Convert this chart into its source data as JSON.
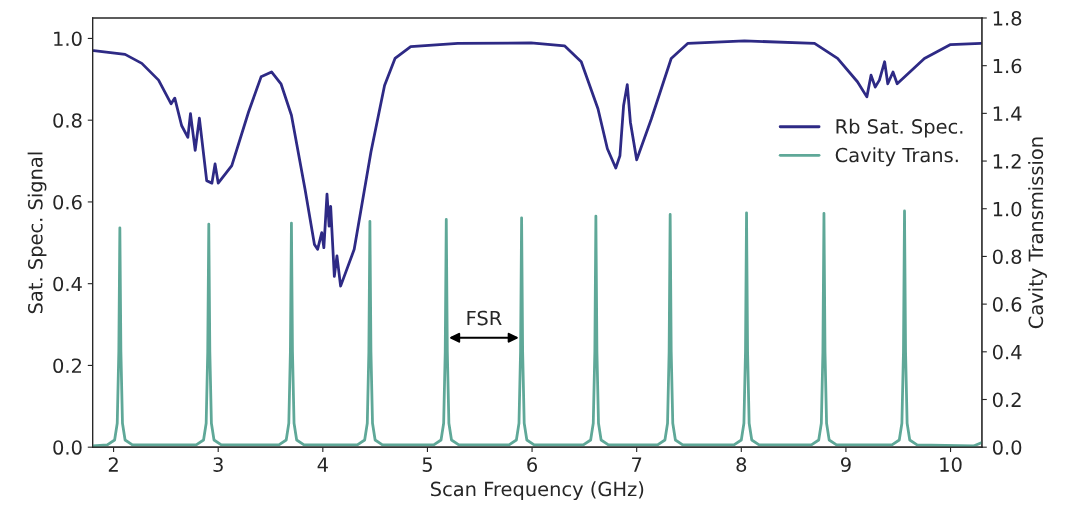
{
  "chart_data": {
    "type": "line",
    "xlabel": "Scan Frequency (GHz)",
    "ylabel": "Sat. Spec. Signal",
    "y2label": "Cavity Transmission",
    "xlim": [
      1.8,
      10.3
    ],
    "xticks": [
      2,
      3,
      4,
      5,
      6,
      7,
      8,
      9,
      10
    ],
    "ylim": [
      0,
      1.05
    ],
    "yticks": [
      {
        "value": 0,
        "label": "0.0"
      },
      {
        "value": 0.2,
        "label": "0.2"
      },
      {
        "value": 0.4,
        "label": "0.4"
      },
      {
        "value": 0.6,
        "label": "0.6"
      },
      {
        "value": 0.8,
        "label": "0.8"
      },
      {
        "value": 1.0,
        "label": "1.0"
      }
    ],
    "y2lim": [
      0,
      1.8
    ],
    "y2ticks": [
      {
        "value": 0,
        "label": "0.0"
      },
      {
        "value": 0.2,
        "label": "0.2"
      },
      {
        "value": 0.4,
        "label": "0.4"
      },
      {
        "value": 0.6,
        "label": "0.6"
      },
      {
        "value": 0.8,
        "label": "0.8"
      },
      {
        "value": 1.0,
        "label": "1.0"
      },
      {
        "value": 1.2,
        "label": "1.2"
      },
      {
        "value": 1.4,
        "label": "1.4"
      },
      {
        "value": 1.6,
        "label": "1.6"
      },
      {
        "value": 1.8,
        "label": "1.8"
      }
    ],
    "grid": false,
    "legend": "right",
    "line_style": "solid",
    "marker": "none",
    "annotations": [
      "FSR"
    ],
    "series": [
      {
        "name": "Rb Sat. Spec.",
        "color": "#2e2a85",
        "x": [
          1.81,
          2.11,
          2.27,
          2.43,
          2.55,
          2.585,
          2.65,
          2.71,
          2.735,
          2.78,
          2.82,
          2.89,
          2.94,
          2.97,
          3.0,
          3.13,
          3.29,
          3.41,
          3.51,
          3.6,
          3.7,
          3.83,
          3.92,
          3.95,
          3.99,
          4.01,
          4.04,
          4.06,
          4.075,
          4.11,
          4.135,
          4.17,
          4.3,
          4.46,
          4.59,
          4.69,
          4.84,
          5.29,
          5.99,
          6.31,
          6.47,
          6.63,
          6.72,
          6.8,
          6.84,
          6.875,
          6.91,
          6.94,
          7.0,
          7.14,
          7.33,
          7.49,
          8.03,
          8.7,
          8.92,
          9.11,
          9.2,
          9.24,
          9.28,
          9.32,
          9.37,
          9.4,
          9.45,
          9.49,
          9.75,
          10.0,
          10.29
        ],
        "values": [
          0.97,
          0.961,
          0.939,
          0.898,
          0.84,
          0.854,
          0.787,
          0.758,
          0.816,
          0.726,
          0.805,
          0.652,
          0.646,
          0.693,
          0.646,
          0.689,
          0.82,
          0.906,
          0.918,
          0.889,
          0.812,
          0.631,
          0.496,
          0.484,
          0.525,
          0.488,
          0.619,
          0.541,
          0.589,
          0.418,
          0.468,
          0.394,
          0.484,
          0.722,
          0.885,
          0.951,
          0.98,
          0.988,
          0.989,
          0.982,
          0.943,
          0.828,
          0.73,
          0.683,
          0.713,
          0.836,
          0.887,
          0.795,
          0.703,
          0.803,
          0.951,
          0.988,
          0.994,
          0.988,
          0.951,
          0.894,
          0.857,
          0.91,
          0.881,
          0.898,
          0.943,
          0.889,
          0.918,
          0.889,
          0.951,
          0.985,
          0.988
        ]
      },
      {
        "name": "Cavity Trans.",
        "color": "#5fa898",
        "axis": "y2",
        "x": [
          1.8,
          1.94,
          2.01,
          2.035,
          2.05,
          2.06,
          2.07,
          2.085,
          2.11,
          2.18,
          2.79,
          2.86,
          2.885,
          2.9,
          2.91,
          2.92,
          2.935,
          2.96,
          3.03,
          3.58,
          3.65,
          3.675,
          3.69,
          3.7,
          3.71,
          3.725,
          3.75,
          3.82,
          4.33,
          4.4,
          4.425,
          4.44,
          4.45,
          4.46,
          4.475,
          4.5,
          4.57,
          5.06,
          5.13,
          5.155,
          5.17,
          5.18,
          5.19,
          5.205,
          5.23,
          5.3,
          5.78,
          5.85,
          5.875,
          5.89,
          5.9,
          5.91,
          5.925,
          5.95,
          6.02,
          6.49,
          6.56,
          6.585,
          6.6,
          6.61,
          6.62,
          6.635,
          6.66,
          6.73,
          7.2,
          7.27,
          7.295,
          7.31,
          7.32,
          7.33,
          7.345,
          7.37,
          7.44,
          7.93,
          8.0,
          8.025,
          8.04,
          8.05,
          8.06,
          8.075,
          8.1,
          8.17,
          8.67,
          8.74,
          8.765,
          8.78,
          8.79,
          8.8,
          8.815,
          8.84,
          8.91,
          9.44,
          9.51,
          9.535,
          9.55,
          9.56,
          9.57,
          9.585,
          9.61,
          9.68,
          10.22,
          10.3
        ],
        "values": [
          0.005,
          0.01,
          0.03,
          0.1,
          0.4,
          0.92,
          0.4,
          0.1,
          0.03,
          0.01,
          0.01,
          0.03,
          0.1,
          0.4,
          0.935,
          0.4,
          0.1,
          0.03,
          0.01,
          0.01,
          0.03,
          0.1,
          0.4,
          0.94,
          0.4,
          0.1,
          0.03,
          0.01,
          0.01,
          0.03,
          0.1,
          0.4,
          0.947,
          0.4,
          0.1,
          0.03,
          0.01,
          0.01,
          0.03,
          0.1,
          0.4,
          0.955,
          0.4,
          0.1,
          0.03,
          0.01,
          0.01,
          0.03,
          0.1,
          0.4,
          0.962,
          0.4,
          0.1,
          0.03,
          0.01,
          0.01,
          0.03,
          0.1,
          0.4,
          0.969,
          0.4,
          0.1,
          0.03,
          0.01,
          0.01,
          0.03,
          0.1,
          0.4,
          0.976,
          0.4,
          0.1,
          0.03,
          0.01,
          0.01,
          0.03,
          0.1,
          0.4,
          0.983,
          0.4,
          0.1,
          0.03,
          0.01,
          0.01,
          0.03,
          0.1,
          0.4,
          0.981,
          0.4,
          0.1,
          0.03,
          0.01,
          0.01,
          0.03,
          0.1,
          0.4,
          0.991,
          0.4,
          0.1,
          0.03,
          0.01,
          0.005,
          0.02
        ]
      }
    ]
  }
}
